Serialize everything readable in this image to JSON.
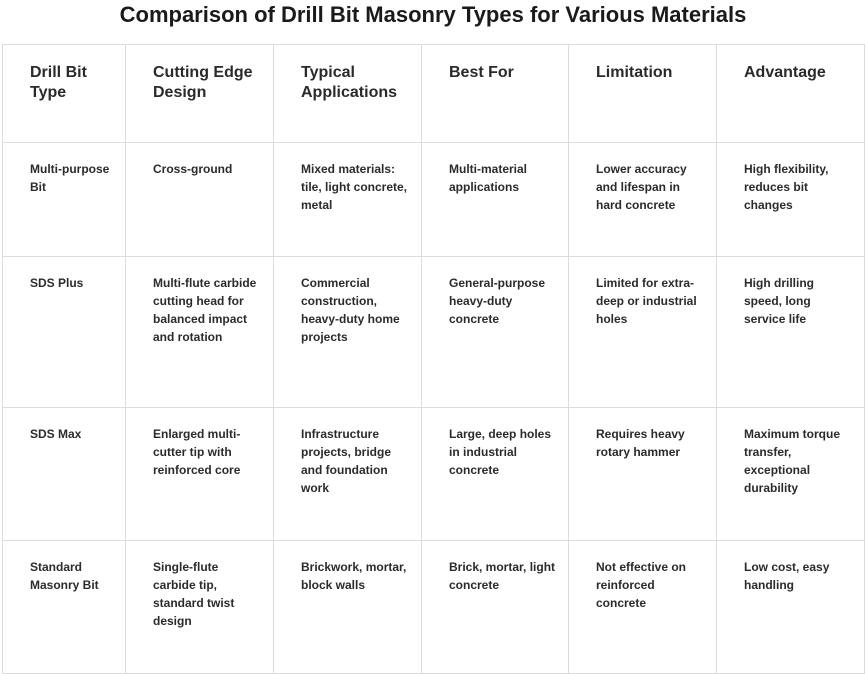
{
  "title": "Comparison of Drill Bit Masonry Types for Various Materials",
  "headers": [
    "Drill Bit Type",
    "Cutting Edge Design",
    "Typical Applications",
    "Best For",
    "Limitation",
    "Advantage"
  ],
  "rows": [
    [
      "Multi-purpose Bit",
      "Cross-ground",
      "Mixed materials: tile, light concrete, metal",
      "Multi-material applications",
      "Lower accuracy and lifespan in hard concrete",
      "High flexibility, reduces bit changes"
    ],
    [
      "SDS Plus",
      "Multi-flute carbide cutting head for balanced impact and rotation",
      "Commercial construction, heavy-duty home projects",
      "General-purpose heavy-duty concrete",
      "Limited for extra-deep or industrial holes",
      "High drilling speed, long service life"
    ],
    [
      "SDS Max",
      "Enlarged multi-cutter tip with reinforced core",
      "Infrastructure projects, bridge and foundation work",
      "Large, deep holes in industrial concrete",
      "Requires heavy rotary hammer",
      "Maximum torque transfer, exceptional durability"
    ],
    [
      "Standard Masonry Bit",
      "Single-flute carbide tip, standard twist design",
      "Brickwork, mortar, block walls",
      "Brick, mortar, light concrete",
      "Not effective on reinforced concrete",
      "Low cost, easy handling"
    ]
  ]
}
